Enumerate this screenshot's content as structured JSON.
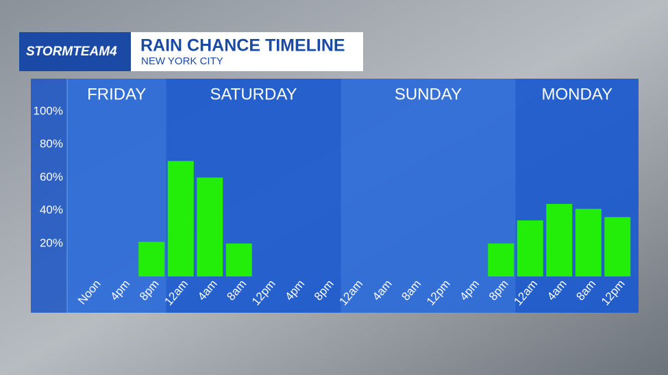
{
  "brand": "STORMTEAM4",
  "chart_data": {
    "type": "bar",
    "title": "RAIN CHANCE TIMELINE",
    "subtitle": "NEW YORK CITY",
    "days": [
      "FRIDAY",
      "SATURDAY",
      "SUNDAY",
      "MONDAY"
    ],
    "categories": [
      "Noon",
      "4pm",
      "8pm",
      "12am",
      "4am",
      "8am",
      "12pm",
      "4pm",
      "8pm",
      "12am",
      "4am",
      "8am",
      "12pm",
      "4pm",
      "8pm",
      "12am",
      "4am",
      "8am",
      "12pm"
    ],
    "values": [
      0,
      0,
      21,
      70,
      60,
      20,
      0,
      0,
      0,
      0,
      0,
      0,
      0,
      0,
      20,
      34,
      44,
      41,
      36
    ],
    "color": "#22ee0a",
    "ylim": [
      0,
      100
    ],
    "yticks": [
      {
        "value": 20,
        "label": "20%"
      },
      {
        "value": 40,
        "label": "40%"
      },
      {
        "value": 60,
        "label": "60%"
      },
      {
        "value": 80,
        "label": "80%"
      },
      {
        "value": 100,
        "label": "100%"
      }
    ]
  }
}
